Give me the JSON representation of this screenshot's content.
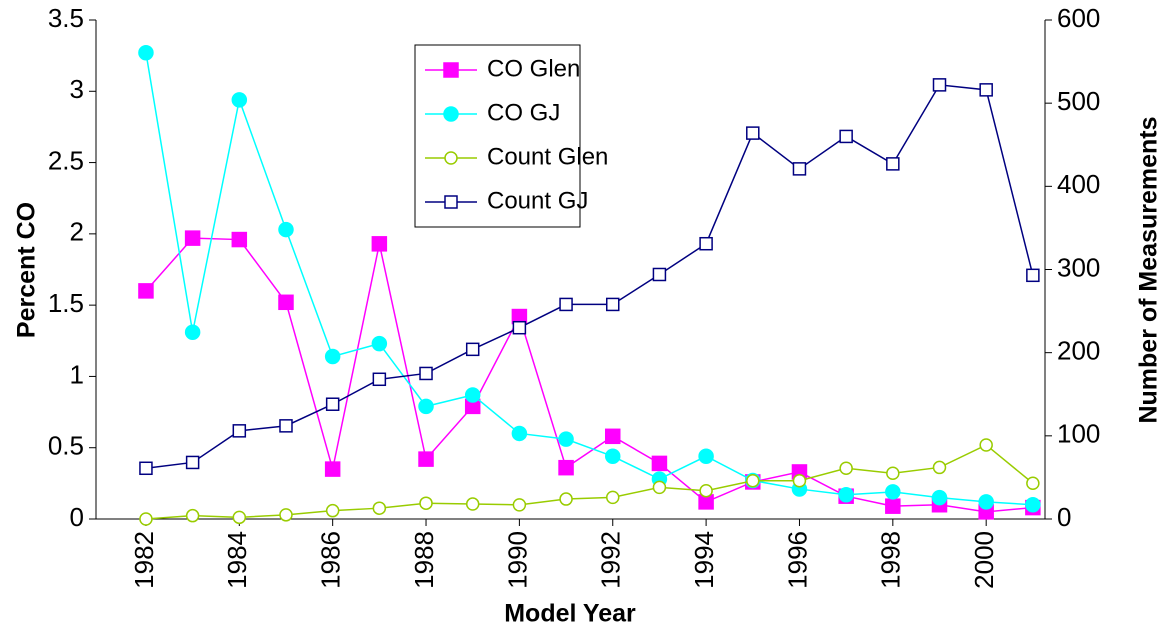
{
  "chart_data": {
    "type": "line",
    "x_label": "Model Year",
    "y_label": "Percent CO",
    "y2_label": "Number of Measurements",
    "x": [
      1982,
      1983,
      1984,
      1985,
      1986,
      1987,
      1988,
      1989,
      1990,
      1991,
      1992,
      1993,
      1994,
      1995,
      1996,
      1997,
      1998,
      1999,
      2000,
      2001
    ],
    "xlim": [
      1980.93,
      2001.26
    ],
    "xticks": [
      1982,
      1984,
      1986,
      1988,
      1990,
      1992,
      1994,
      1996,
      1998,
      2000
    ],
    "ylim": [
      0,
      3.5
    ],
    "yticks": [
      0,
      0.5,
      1,
      1.5,
      2,
      2.5,
      3,
      3.5
    ],
    "y2lim": [
      0,
      600
    ],
    "y2ticks": [
      0,
      100,
      200,
      300,
      400,
      500,
      600
    ],
    "legend": "top-center",
    "series": [
      {
        "name": "CO Glen",
        "color": "#ff00ff",
        "marker": "square-filled",
        "values": [
          1.6,
          1.97,
          1.96,
          1.52,
          0.35,
          1.93,
          0.42,
          0.79,
          1.42,
          0.36,
          0.58,
          0.39,
          0.12,
          0.26,
          0.33,
          0.16,
          0.09,
          0.1,
          0.05,
          0.08
        ]
      },
      {
        "name": "CO GJ",
        "color": "#00ffff",
        "marker": "circle-filled",
        "values": [
          3.27,
          1.31,
          2.94,
          2.03,
          1.14,
          1.23,
          0.79,
          0.87,
          0.6,
          0.56,
          0.44,
          0.28,
          0.44,
          0.27,
          0.21,
          0.17,
          0.19,
          0.15,
          0.12,
          0.1
        ]
      },
      {
        "name": "Count Glen",
        "color": "#99cc00",
        "marker": "circle-open",
        "axis": "y2",
        "values": [
          0,
          4,
          2,
          5,
          10,
          13,
          19,
          18,
          17,
          24,
          26,
          38,
          34,
          46,
          46,
          61,
          55,
          62,
          89,
          43
        ]
      },
      {
        "name": "Count GJ",
        "color": "#000080",
        "marker": "square-open",
        "axis": "y2",
        "values": [
          61,
          68,
          106,
          112,
          138,
          168,
          175,
          204,
          230,
          258,
          258,
          294,
          331,
          464,
          421,
          460,
          427,
          522,
          516,
          293
        ]
      }
    ]
  }
}
